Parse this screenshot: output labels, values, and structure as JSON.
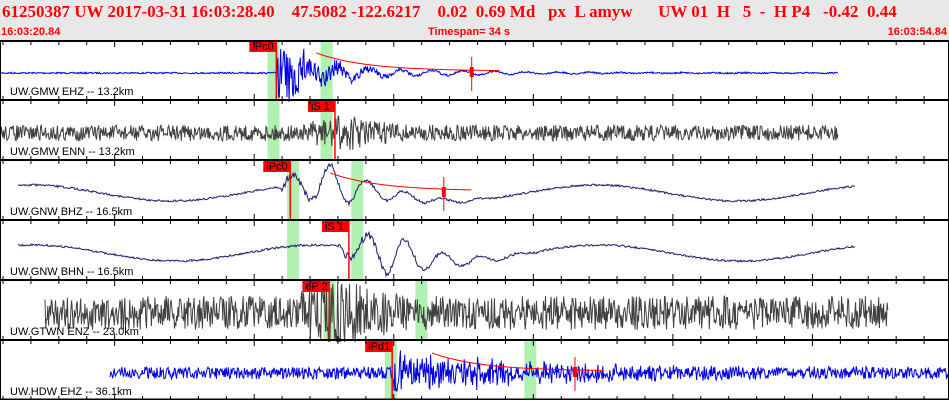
{
  "header": {
    "title": "61250387 UW 2017-03-31 16:03:28.40    47.5082 -122.6217    0.02  0.69 Md   px  L amyw      UW 01  H   5  -  H P4   -0.42  0.44",
    "start_time": "16:03:20.84",
    "timespan": "Timespan=  34 s",
    "end_time": "16:03:54.84"
  },
  "colors": {
    "header_text": "#ff0000",
    "pick": "#ff0000",
    "band": "#b0f0b0",
    "blue": "#0000e0",
    "gray": "#404040",
    "navy": "#1a1a6e"
  },
  "channels": [
    {
      "label": "UW.GMW EHZ -- 13.2km",
      "pick": "iPc0",
      "pick_time": 9.9,
      "bands": [
        9.8,
        11.7
      ],
      "color": "blue",
      "amp_marker": 16.9
    },
    {
      "label": "UW.GMW ENN -- 13.2km",
      "pick": "iS 1",
      "pick_time": 12.0,
      "bands": [
        9.8,
        11.7
      ],
      "color": "gray"
    },
    {
      "label": "UW.GNW BHZ -- 16.5km",
      "pick": "iPc0",
      "pick_time": 10.4,
      "bands": [
        10.5,
        12.8
      ],
      "color": "navy",
      "amp_marker": 15.9
    },
    {
      "label": "UW.GNW BHN -- 16.5km",
      "pick": "iS 1",
      "pick_time": 12.5,
      "bands": [
        10.5,
        12.8
      ],
      "color": "navy"
    },
    {
      "label": "UW.GTWN ENZ -- 23.0km",
      "pick": "eP 2",
      "pick_time": 11.8,
      "bands": [
        11.8,
        15.1
      ],
      "color": "gray"
    },
    {
      "label": "UW.HDW EHZ -- 36.1km",
      "pick": "iPd1",
      "pick_time": 14.05,
      "bands": [
        14.0,
        19.0
      ],
      "color": "blue",
      "amp_marker": 20.6
    }
  ]
}
